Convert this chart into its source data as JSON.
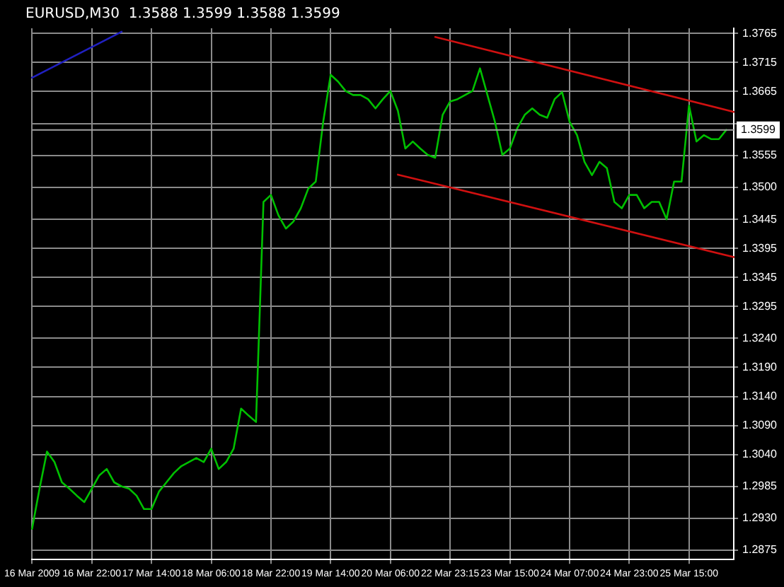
{
  "chart_data": {
    "type": "line",
    "title": "EURUSD,M30  1.3588 1.3599 1.3588 1.3599",
    "categories": [
      "16 Mar 2009",
      null,
      null,
      null,
      null,
      null,
      null,
      null,
      "16 Mar 22:00",
      null,
      null,
      null,
      null,
      null,
      null,
      null,
      "17 Mar 14:00",
      null,
      null,
      null,
      null,
      null,
      null,
      null,
      "18 Mar 06:00",
      null,
      null,
      null,
      null,
      null,
      null,
      null,
      "18 Mar 22:00",
      null,
      null,
      null,
      null,
      null,
      null,
      null,
      "19 Mar 14:00",
      null,
      null,
      null,
      null,
      null,
      null,
      null,
      "20 Mar 06:00",
      null,
      null,
      null,
      null,
      null,
      null,
      null,
      "22 Mar 23:15",
      null,
      null,
      null,
      null,
      null,
      null,
      null,
      "23 Mar 15:00",
      null,
      null,
      null,
      null,
      null,
      null,
      null,
      "24 Mar 07:00",
      null,
      null,
      null,
      null,
      null,
      null,
      null,
      "24 Mar 23:00",
      null,
      null,
      null,
      null,
      null,
      null,
      null,
      "25 Mar 15:00",
      null,
      null,
      null,
      null,
      null,
      null
    ],
    "series": [
      {
        "type": "line",
        "color": "#00c000",
        "values": [
          1.2912,
          1.2981,
          1.3045,
          1.3027,
          1.2992,
          1.2981,
          1.2969,
          1.2958,
          1.2981,
          1.3004,
          1.3015,
          1.2992,
          1.2985,
          1.2981,
          1.2969,
          1.2946,
          1.2946,
          1.2976,
          1.2992,
          1.3008,
          1.302,
          1.3027,
          1.3034,
          1.3027,
          1.305,
          1.3015,
          1.3027,
          1.305,
          1.3119,
          1.3107,
          1.3096,
          1.3475,
          1.3487,
          1.3452,
          1.3429,
          1.3441,
          1.3464,
          1.3498,
          1.351,
          1.3613,
          1.3694,
          1.3682,
          1.3666,
          1.3659,
          1.3659,
          1.3652,
          1.3636,
          1.3652,
          1.3666,
          1.3632,
          1.3567,
          1.3579,
          1.3567,
          1.3556,
          1.3551,
          1.3625,
          1.3648,
          1.3652,
          1.3659,
          1.3666,
          1.3705,
          1.3659,
          1.3613,
          1.3556,
          1.3567,
          1.3602,
          1.3625,
          1.3636,
          1.3625,
          1.362,
          1.3652,
          1.3664,
          1.3613,
          1.359,
          1.3544,
          1.3521,
          1.3544,
          1.3533,
          1.3475,
          1.3464,
          1.3487,
          1.3487,
          1.3464,
          1.3475,
          1.3475,
          1.3445,
          1.351,
          1.351,
          1.3641,
          1.3579,
          1.359,
          1.3583,
          1.3583,
          1.3599,
          null
        ]
      },
      {
        "type": "line",
        "color": "#d01010",
        "values": [
          null,
          null,
          null,
          null,
          null,
          null,
          null,
          null,
          null,
          null,
          null,
          null,
          null,
          null,
          null,
          null,
          null,
          null,
          null,
          null,
          null,
          null,
          null,
          null,
          null,
          null,
          null,
          null,
          null,
          null,
          null,
          null,
          null,
          null,
          null,
          null,
          null,
          null,
          null,
          null,
          null,
          null,
          null,
          null,
          null,
          null,
          null,
          null,
          null,
          null,
          null,
          null,
          null,
          null,
          1.3759,
          null,
          null,
          null,
          null,
          null,
          null,
          null,
          null,
          null,
          null,
          null,
          null,
          null,
          null,
          null,
          null,
          null,
          null,
          null,
          null,
          null,
          null,
          null,
          null,
          null,
          null,
          null,
          null,
          null,
          null,
          null,
          null,
          null,
          null,
          null,
          null,
          null,
          null,
          null,
          1.363
        ]
      },
      {
        "type": "line",
        "color": "#d01010",
        "values": [
          null,
          null,
          null,
          null,
          null,
          null,
          null,
          null,
          null,
          null,
          null,
          null,
          null,
          null,
          null,
          null,
          null,
          null,
          null,
          null,
          null,
          null,
          null,
          null,
          null,
          null,
          null,
          null,
          null,
          null,
          null,
          null,
          null,
          null,
          null,
          null,
          null,
          null,
          null,
          null,
          null,
          null,
          null,
          null,
          null,
          null,
          null,
          null,
          null,
          1.3522,
          null,
          null,
          null,
          null,
          null,
          null,
          null,
          null,
          null,
          null,
          null,
          null,
          null,
          null,
          null,
          null,
          null,
          null,
          null,
          null,
          null,
          null,
          null,
          null,
          null,
          null,
          null,
          null,
          null,
          null,
          null,
          null,
          null,
          null,
          null,
          null,
          null,
          null,
          null,
          null,
          null,
          null,
          null,
          null,
          1.338
        ]
      },
      {
        "type": "line",
        "color": "#2020c0",
        "values": [
          1.3689,
          null,
          null,
          null,
          null,
          null,
          null,
          null,
          null,
          null,
          null,
          null,
          1.3768,
          null,
          null,
          null,
          null,
          null,
          null,
          null,
          null,
          null,
          null,
          null,
          null,
          null,
          null,
          null,
          null,
          null,
          null,
          null,
          null,
          null,
          null,
          null,
          null,
          null,
          null,
          null,
          null,
          null,
          null,
          null,
          null,
          null,
          null,
          null,
          null,
          null,
          null,
          null,
          null,
          null,
          null,
          null,
          null,
          null,
          null,
          null,
          null,
          null,
          null,
          null,
          null,
          null,
          null,
          null,
          null,
          null,
          null,
          null,
          null,
          null,
          null,
          null,
          null,
          null,
          null,
          null,
          null,
          null,
          null,
          null,
          null,
          null,
          null,
          null,
          null,
          null,
          null,
          null,
          null,
          null,
          null
        ]
      }
    ],
    "ylim": [
      1.2859,
      1.3774
    ],
    "yticks": [
      1.2875,
      {
        "value": 1.293,
        "label": "1.2930"
      },
      1.2985,
      {
        "value": 1.304,
        "label": "1.3040"
      },
      {
        "value": 1.309,
        "label": "1.3090"
      },
      {
        "value": 1.314,
        "label": "1.3140"
      },
      {
        "value": 1.319,
        "label": "1.3190"
      },
      {
        "value": 1.324,
        "label": "1.3240"
      },
      1.3295,
      1.3345,
      1.3395,
      1.3445,
      {
        "value": 1.35,
        "label": "1.3500"
      },
      1.3555,
      {
        "value": 1.361,
        "label": null
      },
      1.3665,
      1.3715,
      1.3765
    ],
    "ref_lines": [
      {
        "axis": "y",
        "value": 1.3599,
        "label": "1.3599",
        "color": "#a0a0a0"
      }
    ],
    "grid": true,
    "legend": false,
    "marker": "none"
  }
}
